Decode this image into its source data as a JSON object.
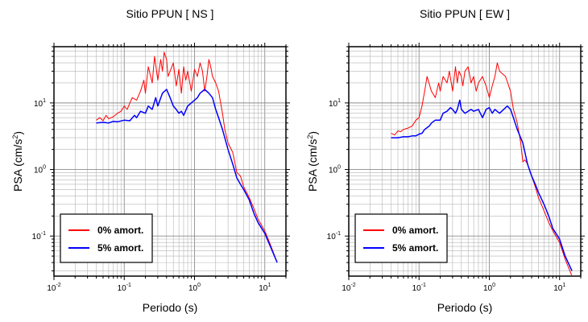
{
  "chart_data": [
    {
      "type": "line",
      "title": "Sitio PPUN [ NS ]",
      "xlabel": "Periodo (s)",
      "ylabel_main": "PSA (cm/s",
      "ylabel_sup": "2",
      "ylabel_close": ")",
      "xscale": "log",
      "yscale": "log",
      "xlim": [
        0.01,
        20
      ],
      "ylim": [
        0.025,
        70
      ],
      "x_ticks": [
        {
          "value": 0.01,
          "base": "10",
          "exp": "-2"
        },
        {
          "value": 0.1,
          "base": "10",
          "exp": "-1"
        },
        {
          "value": 1,
          "base": "10",
          "exp": "0"
        },
        {
          "value": 10,
          "base": "10",
          "exp": "1"
        }
      ],
      "y_ticks": [
        {
          "value": 0.1,
          "base": "10",
          "exp": "-1"
        },
        {
          "value": 1,
          "base": "10",
          "exp": "0"
        },
        {
          "value": 10,
          "base": "10",
          "exp": "1"
        }
      ],
      "grid": true,
      "legend_position": "bottom-left",
      "series": [
        {
          "name": "0% amort.",
          "color": "#ff0000",
          "x": [
            0.04,
            0.045,
            0.05,
            0.055,
            0.06,
            0.07,
            0.08,
            0.09,
            0.1,
            0.11,
            0.12,
            0.13,
            0.15,
            0.17,
            0.19,
            0.2,
            0.22,
            0.25,
            0.27,
            0.3,
            0.33,
            0.35,
            0.37,
            0.4,
            0.42,
            0.45,
            0.5,
            0.55,
            0.6,
            0.65,
            0.7,
            0.75,
            0.8,
            0.9,
            1.0,
            1.1,
            1.2,
            1.3,
            1.4,
            1.5,
            1.6,
            1.7,
            1.8,
            2.0,
            2.2,
            2.5,
            2.7,
            3.0,
            3.5,
            4.0,
            4.5,
            5.0,
            6.0,
            7.0,
            8.0,
            10.0,
            12.0,
            15.0
          ],
          "y": [
            5.5,
            6,
            5.4,
            6.5,
            5.8,
            6.2,
            7,
            7.5,
            9,
            8,
            10,
            12,
            11,
            15,
            22,
            14,
            35,
            20,
            50,
            22,
            45,
            30,
            58,
            45,
            25,
            30,
            40,
            18,
            32,
            14,
            35,
            22,
            30,
            15,
            32,
            25,
            40,
            30,
            15,
            25,
            45,
            35,
            25,
            20,
            15,
            7,
            4,
            2.5,
            1.8,
            0.9,
            0.8,
            0.55,
            0.38,
            0.26,
            0.18,
            0.12,
            0.075,
            0.04
          ]
        },
        {
          "name": "5% amort.",
          "color": "#0000ff",
          "x": [
            0.04,
            0.05,
            0.06,
            0.07,
            0.08,
            0.1,
            0.12,
            0.14,
            0.15,
            0.17,
            0.2,
            0.22,
            0.25,
            0.28,
            0.3,
            0.35,
            0.4,
            0.45,
            0.5,
            0.55,
            0.6,
            0.65,
            0.7,
            0.8,
            0.9,
            1.0,
            1.1,
            1.2,
            1.4,
            1.6,
            1.8,
            2.0,
            2.2,
            2.5,
            3.0,
            3.5,
            4.0,
            4.5,
            5.0,
            6.0,
            7.0,
            8.0,
            10.0,
            12.0,
            15.0
          ],
          "y": [
            5,
            5.1,
            5.0,
            5.3,
            5.2,
            5.5,
            5.4,
            6.5,
            6,
            7.5,
            7,
            9,
            8,
            12,
            9,
            14,
            16,
            12,
            9,
            8,
            7,
            7.5,
            6.5,
            9,
            10,
            11,
            12,
            14,
            16,
            14,
            12,
            8,
            6,
            4,
            2,
            1.2,
            0.75,
            0.6,
            0.5,
            0.35,
            0.22,
            0.16,
            0.11,
            0.07,
            0.04
          ]
        }
      ]
    },
    {
      "type": "line",
      "title": "Sitio PPUN [ EW ]",
      "xlabel": "Periodo (s)",
      "ylabel_main": "PSA (cm/s",
      "ylabel_sup": "2",
      "ylabel_close": ")",
      "xscale": "log",
      "yscale": "log",
      "xlim": [
        0.01,
        20
      ],
      "ylim": [
        0.025,
        70
      ],
      "x_ticks": [
        {
          "value": 0.01,
          "base": "10",
          "exp": "-2"
        },
        {
          "value": 0.1,
          "base": "10",
          "exp": "-1"
        },
        {
          "value": 1,
          "base": "10",
          "exp": "0"
        },
        {
          "value": 10,
          "base": "10",
          "exp": "1"
        }
      ],
      "y_ticks": [
        {
          "value": 0.1,
          "base": "10",
          "exp": "-1"
        },
        {
          "value": 1,
          "base": "10",
          "exp": "0"
        },
        {
          "value": 10,
          "base": "10",
          "exp": "1"
        }
      ],
      "grid": true,
      "legend_position": "bottom-left",
      "series": [
        {
          "name": "0% amort.",
          "color": "#ff0000",
          "x": [
            0.04,
            0.045,
            0.05,
            0.055,
            0.06,
            0.07,
            0.08,
            0.09,
            0.1,
            0.11,
            0.12,
            0.13,
            0.15,
            0.17,
            0.19,
            0.2,
            0.22,
            0.25,
            0.27,
            0.3,
            0.33,
            0.35,
            0.37,
            0.4,
            0.42,
            0.45,
            0.5,
            0.55,
            0.6,
            0.65,
            0.7,
            0.8,
            0.9,
            1.0,
            1.1,
            1.2,
            1.3,
            1.4,
            1.5,
            1.7,
            2.0,
            2.2,
            2.5,
            2.8,
            3.0,
            3.2,
            3.5,
            4.0,
            4.5,
            5.0,
            6.0,
            7.0,
            8.0,
            10.0,
            12.0,
            15.0
          ],
          "y": [
            3.5,
            3.3,
            3.8,
            3.7,
            4,
            4.2,
            4.5,
            5.5,
            6,
            9,
            15,
            25,
            15,
            12,
            20,
            15,
            25,
            20,
            30,
            15,
            35,
            20,
            30,
            25,
            18,
            30,
            35,
            20,
            25,
            15,
            20,
            25,
            18,
            12,
            18,
            25,
            40,
            30,
            28,
            25,
            15,
            8,
            5,
            2.5,
            1.3,
            1.4,
            1.2,
            0.8,
            0.55,
            0.38,
            0.24,
            0.16,
            0.12,
            0.08,
            0.045,
            0.025
          ]
        },
        {
          "name": "5% amort.",
          "color": "#0000ff",
          "x": [
            0.04,
            0.05,
            0.06,
            0.07,
            0.08,
            0.09,
            0.1,
            0.11,
            0.12,
            0.14,
            0.15,
            0.17,
            0.2,
            0.22,
            0.25,
            0.28,
            0.3,
            0.33,
            0.35,
            0.38,
            0.4,
            0.45,
            0.5,
            0.55,
            0.6,
            0.7,
            0.8,
            0.9,
            1.0,
            1.1,
            1.2,
            1.4,
            1.6,
            1.8,
            2.0,
            2.2,
            2.5,
            3.0,
            3.5,
            4.0,
            4.5,
            5.0,
            6.0,
            7.0,
            8.0,
            10.0,
            12.0,
            15.0
          ],
          "y": [
            3,
            3,
            3.1,
            3.1,
            3.2,
            3.2,
            3.4,
            3.5,
            4,
            4.5,
            5,
            5.5,
            5.5,
            7,
            7.5,
            8.5,
            8,
            7,
            8,
            11,
            8,
            7,
            7.5,
            8,
            7.5,
            8,
            6,
            8,
            8.5,
            7,
            8,
            7,
            8,
            9,
            8,
            6,
            4,
            2.5,
            1.2,
            0.8,
            0.6,
            0.45,
            0.3,
            0.2,
            0.13,
            0.09,
            0.05,
            0.03
          ]
        }
      ]
    }
  ]
}
